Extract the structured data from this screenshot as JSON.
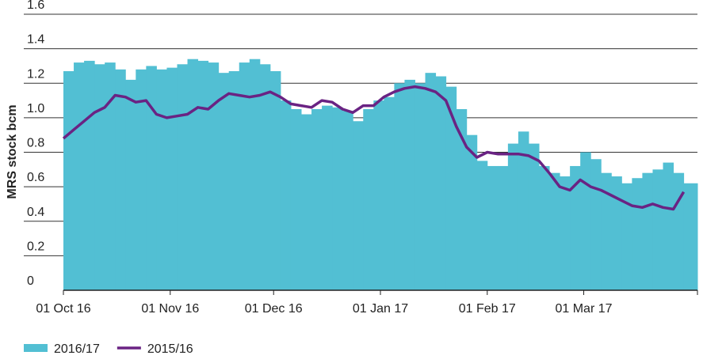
{
  "chart_data": {
    "type": "area_line",
    "ylabel": "MRS stock bcm",
    "x": [
      "2016-10-01",
      "2016-10-04",
      "2016-10-07",
      "2016-10-10",
      "2016-10-13",
      "2016-10-16",
      "2016-10-19",
      "2016-10-22",
      "2016-10-25",
      "2016-10-28",
      "2016-10-31",
      "2016-11-03",
      "2016-11-06",
      "2016-11-09",
      "2016-11-12",
      "2016-11-15",
      "2016-11-18",
      "2016-11-21",
      "2016-11-24",
      "2016-11-27",
      "2016-11-30",
      "2016-12-03",
      "2016-12-06",
      "2016-12-09",
      "2016-12-12",
      "2016-12-15",
      "2016-12-18",
      "2016-12-21",
      "2016-12-24",
      "2016-12-27",
      "2016-12-30",
      "2017-01-02",
      "2017-01-05",
      "2017-01-08",
      "2017-01-11",
      "2017-01-14",
      "2017-01-17",
      "2017-01-20",
      "2017-01-23",
      "2017-01-26",
      "2017-01-29",
      "2017-02-01",
      "2017-02-04",
      "2017-02-07",
      "2017-02-10",
      "2017-02-13",
      "2017-02-16",
      "2017-02-19",
      "2017-02-22",
      "2017-02-25",
      "2017-02-28",
      "2017-03-03",
      "2017-03-06",
      "2017-03-09",
      "2017-03-12",
      "2017-03-15",
      "2017-03-18",
      "2017-03-21",
      "2017-03-24",
      "2017-03-27",
      "2017-03-30"
    ],
    "series": [
      {
        "name": "2016/17",
        "color": "#52bfd3",
        "style": "area",
        "values": [
          1.27,
          1.32,
          1.33,
          1.31,
          1.32,
          1.28,
          1.22,
          1.28,
          1.3,
          1.28,
          1.29,
          1.31,
          1.34,
          1.33,
          1.32,
          1.26,
          1.27,
          1.32,
          1.34,
          1.31,
          1.27,
          1.1,
          1.05,
          1.02,
          1.05,
          1.07,
          1.06,
          1.04,
          0.98,
          1.05,
          1.1,
          1.12,
          1.2,
          1.22,
          1.2,
          1.26,
          1.24,
          1.18,
          1.05,
          0.9,
          0.75,
          0.72,
          0.72,
          0.85,
          0.92,
          0.85,
          0.72,
          0.68,
          0.66,
          0.72,
          0.8,
          0.76,
          0.68,
          0.66,
          0.62,
          0.65,
          0.68,
          0.7,
          0.74,
          0.68,
          0.62
        ]
      },
      {
        "name": "2015/16",
        "color": "#6a2383",
        "style": "line",
        "values": [
          0.88,
          0.93,
          0.98,
          1.03,
          1.06,
          1.13,
          1.12,
          1.09,
          1.1,
          1.02,
          1.0,
          1.01,
          1.02,
          1.06,
          1.05,
          1.1,
          1.14,
          1.13,
          1.12,
          1.13,
          1.15,
          1.12,
          1.08,
          1.07,
          1.06,
          1.1,
          1.09,
          1.05,
          1.03,
          1.07,
          1.07,
          1.12,
          1.15,
          1.17,
          1.18,
          1.17,
          1.15,
          1.1,
          0.95,
          0.83,
          0.77,
          0.8,
          0.79,
          0.79,
          0.79,
          0.78,
          0.75,
          0.68,
          0.6,
          0.58,
          0.64,
          0.6,
          0.58,
          0.55,
          0.52,
          0.49,
          0.48,
          0.5,
          0.48,
          0.47,
          0.57
        ]
      }
    ],
    "xlim": [
      "2016-10-01",
      "2017-04-03"
    ],
    "xticks": [
      {
        "value": "2016-10-01",
        "label": "01 Oct 16"
      },
      {
        "value": "2016-11-01",
        "label": "01 Nov 16"
      },
      {
        "value": "2016-12-01",
        "label": "01 Dec 16"
      },
      {
        "value": "2017-01-01",
        "label": "01 Jan 17"
      },
      {
        "value": "2017-02-01",
        "label": "01 Feb 17"
      },
      {
        "value": "2017-03-01",
        "label": "01 Mar 17"
      }
    ],
    "ylim": [
      0,
      1.6
    ],
    "yticks": [
      0,
      0.2,
      0.4,
      0.6,
      0.8,
      {
        "value": 1,
        "label": "1.0"
      },
      1.2,
      1.4,
      1.6
    ],
    "grid": true,
    "legend": "bottom-left"
  }
}
